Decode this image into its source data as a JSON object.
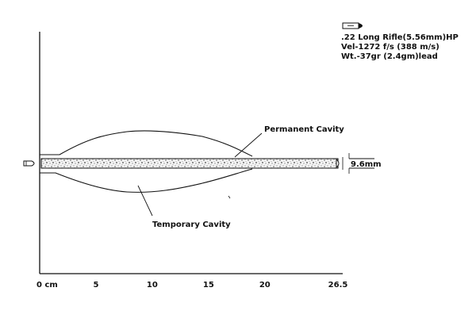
{
  "ammo": {
    "icon": "bullet-icon",
    "line1": ".22 Long Rifle(5.56mm)HP",
    "line2": "Vel-1272 f/s (388 m/s)",
    "line3": "Wt.-37gr (2.4gm)lead"
  },
  "labels": {
    "permanent": "Permanent Cavity",
    "temporary": "Temporary Cavity",
    "diameter": "9.6mm"
  },
  "axis": {
    "ticks": [
      {
        "value": 0,
        "label": "0 cm"
      },
      {
        "value": 5,
        "label": "5"
      },
      {
        "value": 10,
        "label": "10"
      },
      {
        "value": 15,
        "label": "15"
      },
      {
        "value": 20,
        "label": "20"
      },
      {
        "value": 26.5,
        "label": "26.5"
      }
    ]
  }
}
